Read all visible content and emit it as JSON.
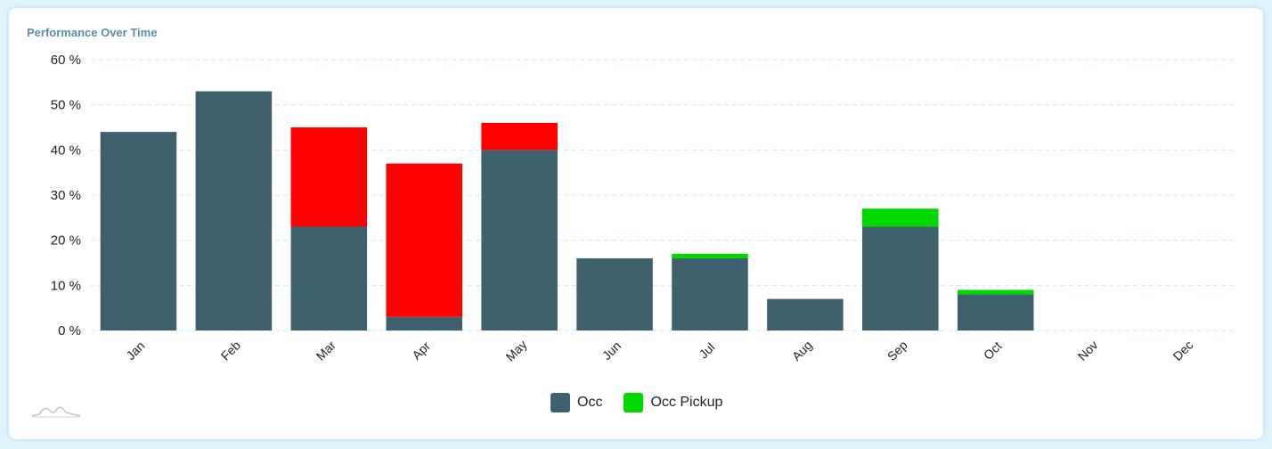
{
  "header": {
    "title": "Performance Over Time"
  },
  "chart_data": {
    "type": "bar",
    "stacked": true,
    "categories": [
      "Jan",
      "Feb",
      "Mar",
      "Apr",
      "May",
      "Jun",
      "Jul",
      "Aug",
      "Sep",
      "Oct",
      "Nov",
      "Dec"
    ],
    "y_ticks": [
      "0 %",
      "10 %",
      "20 %",
      "30 %",
      "40 %",
      "50 %",
      "60 %"
    ],
    "ylim": [
      0,
      60
    ],
    "grid": true,
    "legend_position": "bottom-center",
    "series": [
      {
        "name": "Occ",
        "color": "#3f616e",
        "values": [
          44,
          53,
          23,
          3,
          40,
          16,
          16,
          7,
          23,
          8,
          null,
          null
        ]
      },
      {
        "name": "Occ Pickup",
        "color": "#00d800",
        "values": [
          0,
          0,
          0,
          0,
          0,
          0,
          1,
          0,
          4,
          1,
          null,
          null
        ]
      }
    ],
    "negative_pickup": {
      "color": "#ff0000",
      "values": [
        0,
        0,
        22,
        34,
        6,
        0,
        0,
        0,
        0,
        0,
        null,
        null
      ]
    }
  }
}
